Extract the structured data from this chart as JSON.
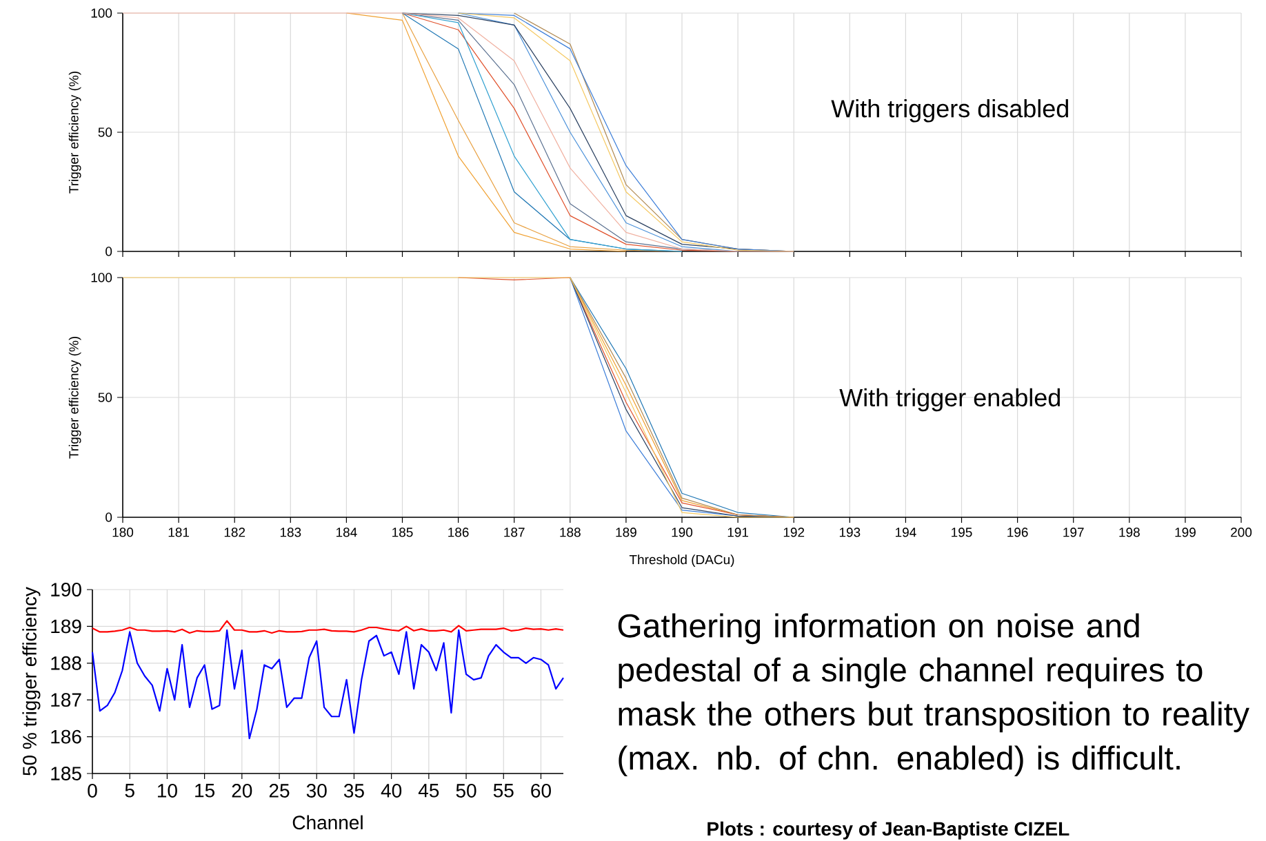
{
  "chart_data": [
    {
      "type": "line",
      "ylabel": "Trigger efficiency (%)",
      "annotations": [
        "With triggers disabled"
      ],
      "xlim": [
        180,
        200
      ],
      "ylim": [
        0,
        100
      ],
      "xticks": [
        180,
        181,
        182,
        183,
        184,
        185,
        186,
        187,
        188,
        189,
        190,
        191,
        192,
        193,
        194,
        195,
        196,
        197,
        198,
        199,
        200
      ],
      "yticks": [
        0,
        50,
        100
      ],
      "tick_labels": "y",
      "grid": true,
      "x": [
        180,
        181,
        182,
        183,
        184,
        185,
        186,
        187,
        188,
        189,
        190,
        191,
        192
      ],
      "series": [
        {
          "color": "#f0a030",
          "values": [
            null,
            null,
            null,
            null,
            100,
            97,
            40,
            8,
            1,
            0,
            null,
            null,
            null
          ]
        },
        {
          "color": "#e8a040",
          "values": [
            null,
            null,
            null,
            null,
            null,
            100,
            55,
            12,
            2,
            0.5,
            0,
            null,
            null
          ]
        },
        {
          "color": "#1f77b4",
          "values": [
            null,
            null,
            null,
            null,
            null,
            100,
            85,
            25,
            5,
            1,
            0,
            null,
            null
          ]
        },
        {
          "color": "#e0502a",
          "values": [
            null,
            null,
            null,
            null,
            null,
            100,
            93,
            60,
            15,
            3,
            0.5,
            0,
            null
          ]
        },
        {
          "color": "#4a90d9",
          "values": [
            null,
            null,
            null,
            null,
            null,
            null,
            100,
            95,
            50,
            12,
            2,
            0,
            null
          ]
        },
        {
          "color": "#2a4060",
          "values": [
            null,
            null,
            null,
            null,
            null,
            100,
            99,
            95,
            60,
            15,
            3,
            1,
            0
          ]
        },
        {
          "color": "#b08850",
          "values": [
            null,
            null,
            null,
            null,
            null,
            null,
            null,
            100,
            87,
            28,
            5,
            1,
            0
          ]
        },
        {
          "color": "#3b7dd8",
          "values": [
            null,
            null,
            null,
            null,
            null,
            null,
            100,
            99,
            85,
            36,
            5,
            1,
            0
          ]
        },
        {
          "color": "#f5c860",
          "values": [
            null,
            null,
            null,
            null,
            null,
            null,
            100,
            98,
            80,
            25,
            4,
            0.5,
            0
          ]
        },
        {
          "color": "#5a7090",
          "values": [
            null,
            null,
            null,
            null,
            null,
            100,
            97,
            70,
            20,
            4,
            1,
            0,
            null
          ]
        },
        {
          "color": "#30a0d0",
          "values": [
            null,
            null,
            null,
            null,
            null,
            100,
            96,
            40,
            5,
            1,
            0,
            null,
            null
          ]
        },
        {
          "color": "#f0b0a0",
          "values": [
            100,
            100,
            100,
            100,
            100,
            100,
            98,
            80,
            35,
            8,
            1,
            0,
            0
          ]
        }
      ]
    },
    {
      "type": "line",
      "xlabel": "Threshold (DACu)",
      "ylabel": "Trigger efficiency (%)",
      "annotations": [
        "With trigger enabled"
      ],
      "xlim": [
        180,
        200
      ],
      "ylim": [
        0,
        100
      ],
      "xticks": [
        180,
        181,
        182,
        183,
        184,
        185,
        186,
        187,
        188,
        189,
        190,
        191,
        192,
        193,
        194,
        195,
        196,
        197,
        198,
        199,
        200
      ],
      "yticks": [
        0,
        50,
        100
      ],
      "grid": true,
      "x": [
        180,
        181,
        182,
        183,
        184,
        185,
        186,
        187,
        188,
        189,
        190,
        191,
        192
      ],
      "series": [
        {
          "color": "#3b7dd8",
          "values": [
            null,
            null,
            null,
            null,
            null,
            null,
            null,
            null,
            100,
            36,
            3,
            0.5,
            0
          ]
        },
        {
          "color": "#1f77b4",
          "values": [
            null,
            null,
            null,
            null,
            null,
            null,
            null,
            null,
            100,
            62,
            10,
            2,
            0
          ]
        },
        {
          "color": "#f0a030",
          "values": [
            null,
            null,
            null,
            null,
            null,
            null,
            null,
            null,
            100,
            55,
            7,
            1,
            0
          ]
        },
        {
          "color": "#e0502a",
          "values": [
            null,
            null,
            null,
            null,
            null,
            null,
            100,
            99,
            100,
            48,
            6,
            1,
            0
          ]
        },
        {
          "color": "#2a4060",
          "values": [
            null,
            null,
            null,
            null,
            null,
            null,
            null,
            null,
            100,
            45,
            4,
            0.5,
            0
          ]
        },
        {
          "color": "#b08850",
          "values": [
            null,
            null,
            null,
            null,
            null,
            null,
            null,
            null,
            100,
            58,
            8,
            1,
            0
          ]
        },
        {
          "color": "#f5c860",
          "values": [
            100,
            100,
            100,
            100,
            100,
            100,
            100,
            100,
            100,
            52,
            2,
            0,
            0
          ]
        }
      ]
    },
    {
      "type": "line",
      "xlabel": "Channel",
      "ylabel": "50 % trigger efficiency",
      "xlim": [
        0,
        63
      ],
      "ylim": [
        185,
        190
      ],
      "xticks": [
        0,
        5,
        10,
        15,
        20,
        25,
        30,
        35,
        40,
        45,
        50,
        55,
        60
      ],
      "yticks": [
        185,
        186,
        187,
        188,
        189,
        190
      ],
      "grid": true,
      "x": [
        0,
        1,
        2,
        3,
        4,
        5,
        6,
        7,
        8,
        9,
        10,
        11,
        12,
        13,
        14,
        15,
        16,
        17,
        18,
        19,
        20,
        21,
        22,
        23,
        24,
        25,
        26,
        27,
        28,
        29,
        30,
        31,
        32,
        33,
        34,
        35,
        36,
        37,
        38,
        39,
        40,
        41,
        42,
        43,
        44,
        45,
        46,
        47,
        48,
        49,
        50,
        51,
        52,
        53,
        54,
        55,
        56,
        57,
        58,
        59,
        60,
        61,
        62,
        63
      ],
      "series": [
        {
          "color": "#ff0000",
          "values": [
            188.95,
            188.85,
            188.85,
            188.87,
            188.9,
            188.97,
            188.9,
            188.9,
            188.87,
            188.87,
            188.88,
            188.85,
            188.92,
            188.82,
            188.88,
            188.86,
            188.86,
            188.88,
            189.15,
            188.9,
            188.9,
            188.85,
            188.85,
            188.88,
            188.82,
            188.88,
            188.85,
            188.85,
            188.86,
            188.9,
            188.9,
            188.92,
            188.88,
            188.87,
            188.87,
            188.85,
            188.9,
            188.97,
            188.97,
            188.93,
            188.9,
            188.88,
            189.0,
            188.88,
            188.93,
            188.88,
            188.88,
            188.9,
            188.85,
            189.02,
            188.88,
            188.9,
            188.92,
            188.92,
            188.92,
            188.95,
            188.88,
            188.9,
            188.95,
            188.92,
            188.93,
            188.9,
            188.93,
            188.9
          ]
        },
        {
          "color": "#0000ff",
          "values": [
            188.3,
            186.7,
            186.85,
            187.2,
            187.8,
            188.85,
            188.0,
            187.65,
            187.4,
            186.7,
            187.85,
            187.0,
            188.5,
            186.8,
            187.6,
            187.95,
            186.75,
            186.85,
            188.9,
            187.3,
            188.35,
            185.95,
            186.75,
            187.95,
            187.85,
            188.1,
            186.8,
            187.05,
            187.05,
            188.15,
            188.6,
            186.8,
            186.55,
            186.55,
            187.55,
            186.1,
            187.55,
            188.6,
            188.75,
            188.2,
            188.3,
            187.7,
            188.85,
            187.3,
            188.5,
            188.3,
            187.8,
            188.55,
            186.65,
            188.9,
            187.7,
            187.55,
            187.6,
            188.2,
            188.5,
            188.3,
            188.15,
            188.15,
            188.0,
            188.15,
            188.1,
            187.95,
            187.3,
            187.6
          ]
        }
      ]
    },
    {
      "type": "other",
      "annotations": [
        "Gathering information on noise and pedestal of a single channel requires to mask the others but transposition to reality (max. nb. of chn. enabled) is difficult.",
        "Plots : courtesy of Jean-Baptiste CIZEL"
      ]
    }
  ]
}
